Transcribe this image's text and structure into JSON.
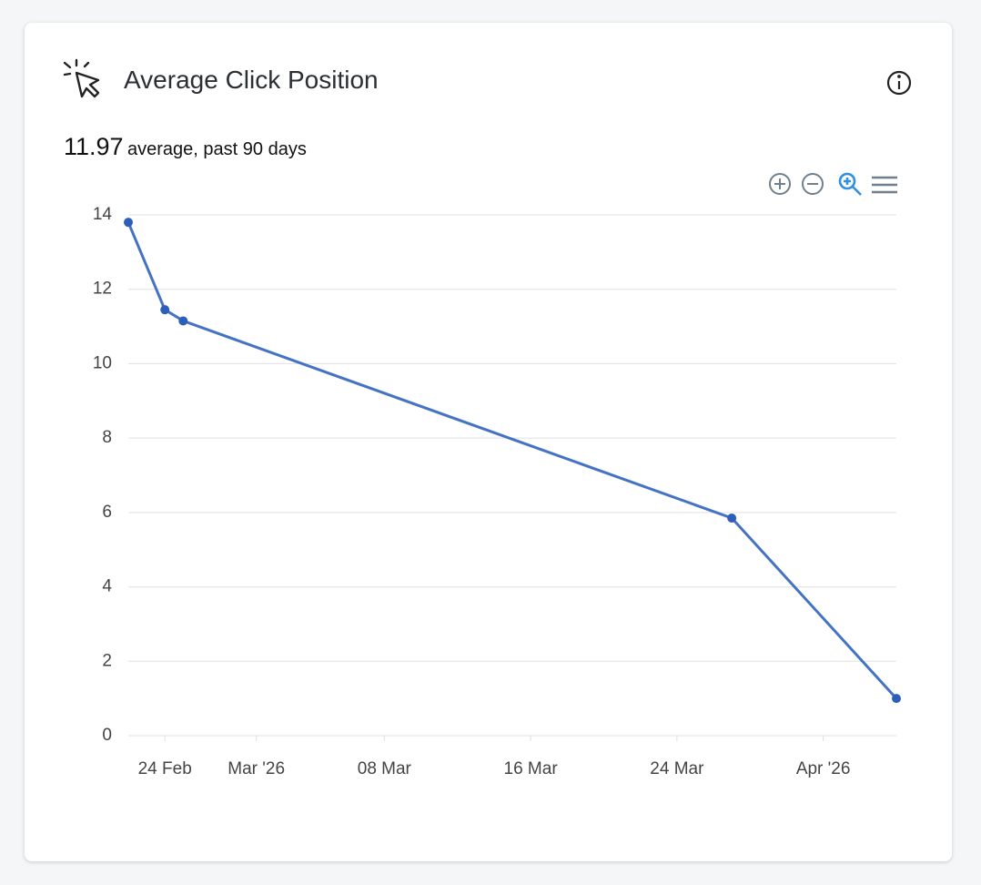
{
  "card": {
    "title": "Average Click Position",
    "summary_value": "11.97",
    "summary_text": "average, past 90 days"
  },
  "chart_data": {
    "type": "line",
    "color": "#4472c4",
    "x": [
      "2026-02-22",
      "2026-02-24",
      "2026-02-25",
      "2026-03-27",
      "2026-04-05"
    ],
    "values": [
      13.8,
      11.45,
      11.15,
      5.85,
      1.0
    ],
    "xlim": [
      "2026-02-22",
      "2026-04-05"
    ],
    "xticks": [
      {
        "value": "2026-02-24",
        "label": "24 Feb"
      },
      {
        "value": "2026-03-01",
        "label": "Mar '26"
      },
      {
        "value": "2026-03-08",
        "label": "08 Mar"
      },
      {
        "value": "2026-03-16",
        "label": "16 Mar"
      },
      {
        "value": "2026-03-24",
        "label": "24 Mar"
      },
      {
        "value": "2026-04-01",
        "label": "Apr '26"
      }
    ],
    "ylim": [
      0,
      14
    ],
    "yticks": [
      0,
      2,
      4,
      6,
      8,
      10,
      12,
      14
    ],
    "grid": true
  }
}
